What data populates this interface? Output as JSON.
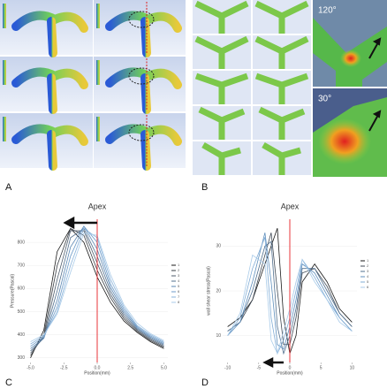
{
  "panel_labels": [
    "A",
    "B",
    "C",
    "D"
  ],
  "insets": [
    "120°",
    "30°"
  ],
  "chart_data": [
    {
      "type": "line",
      "title": "Apex",
      "x_label": "Position(mm)",
      "y_label": "Pressure(Pascal)",
      "x": [
        -5,
        -4,
        -3,
        -2,
        -1,
        0,
        1,
        2,
        3,
        4,
        5
      ],
      "xlim": [
        -5.3,
        5.3
      ],
      "xticks": [
        {
          "value": -5,
          "label": "-5.0"
        },
        {
          "value": -2.5,
          "label": "-2.5"
        },
        {
          "value": 0,
          "label": "0.0"
        },
        {
          "value": 2.5,
          "label": "2.5"
        },
        {
          "value": 5,
          "label": "5.0"
        }
      ],
      "ylim": [
        280,
        900
      ],
      "yticks": [
        300,
        400,
        500,
        600,
        700,
        800
      ],
      "reference_x": 0,
      "reference_color": "#e8343a",
      "series": [
        {
          "name": "1",
          "color": "#1a1a1a",
          "values": [
            300,
            420,
            760,
            860,
            800,
            650,
            540,
            460,
            410,
            370,
            340
          ]
        },
        {
          "name": "2",
          "color": "#3a3f45",
          "values": [
            310,
            400,
            700,
            860,
            830,
            680,
            560,
            470,
            415,
            375,
            345
          ]
        },
        {
          "name": "3",
          "color": "#4d5b6b",
          "values": [
            320,
            390,
            640,
            850,
            850,
            710,
            575,
            480,
            420,
            380,
            350
          ]
        },
        {
          "name": "4",
          "color": "#53708e",
          "values": [
            330,
            385,
            590,
            820,
            860,
            740,
            590,
            490,
            425,
            385,
            355
          ]
        },
        {
          "name": "5",
          "color": "#5a86b2",
          "values": [
            340,
            385,
            550,
            780,
            870,
            770,
            605,
            500,
            430,
            390,
            360
          ]
        },
        {
          "name": "6",
          "color": "#6d9bc8",
          "values": [
            350,
            390,
            520,
            740,
            870,
            800,
            620,
            510,
            435,
            395,
            365
          ]
        },
        {
          "name": "7",
          "color": "#8ab3da",
          "values": [
            360,
            395,
            500,
            700,
            860,
            820,
            640,
            520,
            440,
            400,
            370
          ]
        },
        {
          "name": "8",
          "color": "#aacbe8",
          "values": [
            370,
            400,
            490,
            670,
            840,
            830,
            660,
            530,
            450,
            405,
            375
          ]
        }
      ]
    },
    {
      "type": "line",
      "title": "Apex",
      "x_label": "Position(mm)",
      "y_label": "wall shear stress(Pascal)",
      "x": [
        -10,
        -8,
        -6,
        -4,
        -3,
        -2,
        -1,
        0,
        1,
        2,
        4,
        6,
        8,
        10
      ],
      "xlim": [
        -10.8,
        10.8
      ],
      "xticks": [
        -10,
        -5,
        0,
        5,
        10
      ],
      "ylim": [
        4,
        36
      ],
      "yticks": [
        10,
        20,
        30
      ],
      "reference_x": 0,
      "reference_color": "#e8343a",
      "series": [
        {
          "name": "1",
          "color": "#1a1a1a",
          "values": [
            12,
            14,
            18,
            26,
            30,
            34,
            14,
            6,
            10,
            22,
            26,
            22,
            16,
            13
          ]
        },
        {
          "name": "2",
          "color": "#404a56",
          "values": [
            11,
            13,
            18,
            28,
            33,
            20,
            8,
            8,
            14,
            24,
            25,
            21,
            15,
            12
          ]
        },
        {
          "name": "3",
          "color": "#52708f",
          "values": [
            11,
            13,
            20,
            30,
            31,
            12,
            6,
            10,
            16,
            25,
            25,
            20,
            15,
            12
          ]
        },
        {
          "name": "4",
          "color": "#5f8fbd",
          "values": [
            10,
            13,
            22,
            33,
            22,
            8,
            7,
            12,
            18,
            26,
            24,
            19,
            14,
            11
          ]
        },
        {
          "name": "5",
          "color": "#80acd6",
          "values": [
            10,
            14,
            25,
            32,
            14,
            6,
            9,
            14,
            20,
            27,
            23,
            18,
            14,
            11
          ]
        },
        {
          "name": "6",
          "color": "#a9cbe9",
          "values": [
            10,
            15,
            28,
            26,
            9,
            6,
            11,
            16,
            22,
            27,
            22,
            18,
            13,
            11
          ]
        }
      ]
    }
  ]
}
